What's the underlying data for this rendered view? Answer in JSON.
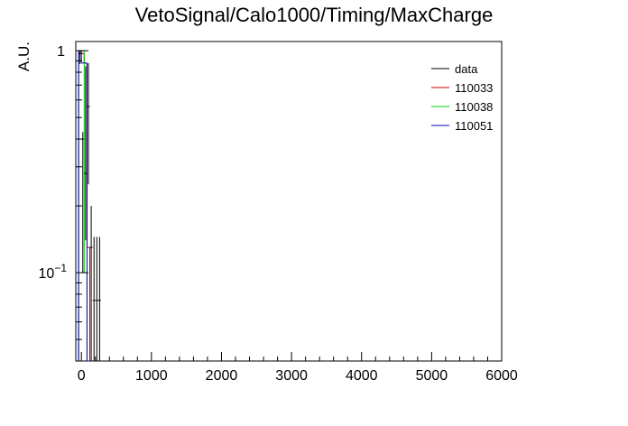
{
  "chart_data": {
    "type": "histogram",
    "title": "VetoSignal/Calo1000/Timing/MaxCharge",
    "xlabel": "",
    "ylabel": "A.U.",
    "xlim": [
      -80,
      6000
    ],
    "ylim": [
      0.04,
      1.1
    ],
    "yscale": "log",
    "x_ticks": [
      0,
      1000,
      2000,
      3000,
      4000,
      5000,
      6000
    ],
    "x_tick_labels": [
      "0",
      "1000",
      "2000",
      "3000",
      "4000",
      "5000",
      "6000"
    ],
    "y_ticks": [
      0.1,
      1
    ],
    "y_tick_labels": [
      "10^-1",
      "1"
    ],
    "grid": false,
    "legend_position": "top-right",
    "series": [
      {
        "name": "data",
        "color": "#000000",
        "style": "points-with-errors",
        "x": [
          -20,
          20,
          60,
          100,
          140,
          180,
          220,
          260
        ],
        "x_halfwidth": [
          20,
          20,
          20,
          20,
          20,
          20,
          20,
          20
        ],
        "y": [
          0.97,
          0.4,
          0.28,
          0.56,
          0.13,
          0.075,
          0.075,
          0.075
        ],
        "y_low": [
          0.87,
          0.1,
          0.14,
          0.25,
          0.04,
          0.04,
          0.04,
          0.04
        ],
        "y_high": [
          1.0,
          0.43,
          0.85,
          0.88,
          0.2,
          0.145,
          0.145,
          0.145
        ]
      },
      {
        "name": "110033",
        "color": "#cc0000",
        "style": "hist",
        "bin_edges": [
          -40,
          0,
          40,
          80,
          120
        ],
        "values": [
          1.0,
          0.97,
          0.88,
          0.13
        ]
      },
      {
        "name": "110038",
        "color": "#00cc00",
        "style": "hist",
        "bin_edges": [
          -40,
          0,
          40,
          80,
          120
        ],
        "values": [
          0.97,
          1.0,
          0.1,
          0.04
        ]
      },
      {
        "name": "110051",
        "color": "#0000cc",
        "style": "hist",
        "bin_edges": [
          -40,
          0,
          40,
          80,
          120
        ],
        "values": [
          1.0,
          0.88,
          0.88,
          0.04
        ]
      }
    ]
  }
}
